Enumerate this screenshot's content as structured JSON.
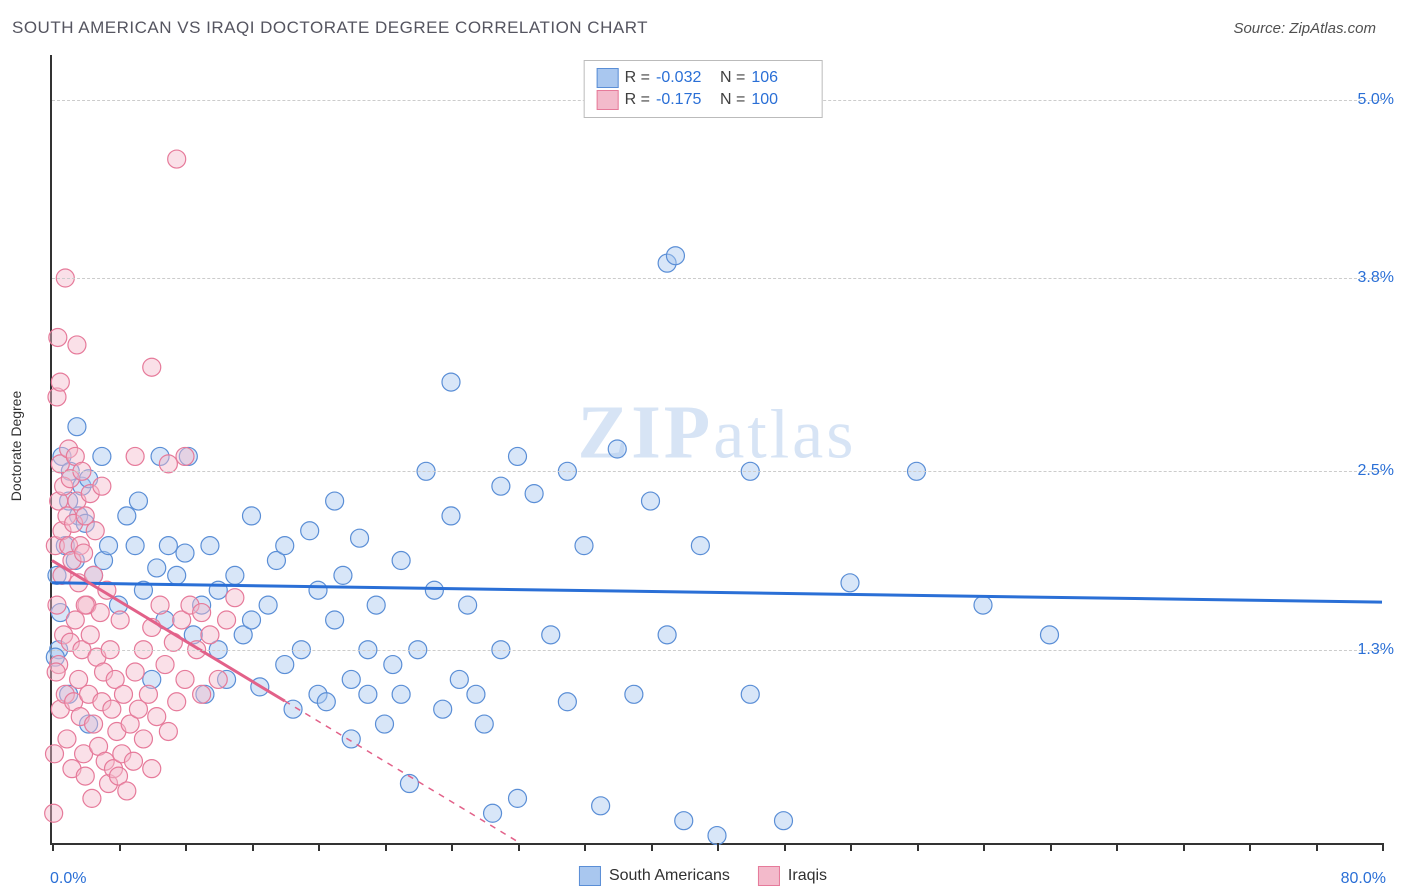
{
  "header": "SOUTH AMERICAN VS IRAQI DOCTORATE DEGREE CORRELATION CHART",
  "source": "Source: ZipAtlas.com",
  "ylabel": "Doctorate Degree",
  "watermark_a": "ZIP",
  "watermark_b": "atlas",
  "chart": {
    "type": "scatter-correlation",
    "xlim": [
      0,
      80
    ],
    "ylim": [
      0,
      5.3
    ],
    "x_ticks_minor_step": 4,
    "y_gridlines": [
      1.3,
      2.5,
      3.8,
      5.0
    ],
    "y_grid_labels": [
      "1.3%",
      "2.5%",
      "3.8%",
      "5.0%"
    ],
    "x_left_label": "0.0%",
    "x_right_label": "80.0%",
    "background_color": "#ffffff",
    "grid_color": "#cccccc",
    "axis_color": "#333333",
    "marker_radius": 9,
    "marker_opacity": 0.45,
    "line_width": 3,
    "series": [
      {
        "name": "South Americans",
        "color_fill": "#a9c7ef",
        "color_stroke": "#5a8ed6",
        "color_line": "#2a6fd6",
        "R": "-0.032",
        "N": "106",
        "trend": {
          "y_at_x0": 1.75,
          "y_at_xmax": 1.62
        },
        "points": [
          [
            0.4,
            1.3
          ],
          [
            0.6,
            2.6
          ],
          [
            0.8,
            2.0
          ],
          [
            1.0,
            2.3
          ],
          [
            1.1,
            2.5
          ],
          [
            1.4,
            1.9
          ],
          [
            1.5,
            2.8
          ],
          [
            1.6,
            2.2
          ],
          [
            1.8,
            2.4
          ],
          [
            2.0,
            2.15
          ],
          [
            2.2,
            0.8
          ],
          [
            2.2,
            2.45
          ],
          [
            2.5,
            1.8
          ],
          [
            3.0,
            2.6
          ],
          [
            3.1,
            1.9
          ],
          [
            3.4,
            2.0
          ],
          [
            4.0,
            1.6
          ],
          [
            4.5,
            2.2
          ],
          [
            5.0,
            2.0
          ],
          [
            5.2,
            2.3
          ],
          [
            5.5,
            1.7
          ],
          [
            6.0,
            1.1
          ],
          [
            6.3,
            1.85
          ],
          [
            6.5,
            2.6
          ],
          [
            6.8,
            1.5
          ],
          [
            7.0,
            2.0
          ],
          [
            7.5,
            1.8
          ],
          [
            8.0,
            1.95
          ],
          [
            8.2,
            2.6
          ],
          [
            8.5,
            1.4
          ],
          [
            9.0,
            1.6
          ],
          [
            9.2,
            1.0
          ],
          [
            9.5,
            2.0
          ],
          [
            10,
            1.3
          ],
          [
            10,
            1.7
          ],
          [
            10.5,
            1.1
          ],
          [
            11,
            1.8
          ],
          [
            11.5,
            1.4
          ],
          [
            12,
            2.2
          ],
          [
            12,
            1.5
          ],
          [
            12.5,
            1.05
          ],
          [
            13,
            1.6
          ],
          [
            13.5,
            1.9
          ],
          [
            14,
            1.2
          ],
          [
            14,
            2.0
          ],
          [
            14.5,
            0.9
          ],
          [
            15,
            1.3
          ],
          [
            15.5,
            2.1
          ],
          [
            16,
            1.0
          ],
          [
            16,
            1.7
          ],
          [
            16.5,
            0.95
          ],
          [
            17,
            1.5
          ],
          [
            17,
            2.3
          ],
          [
            17.5,
            1.8
          ],
          [
            18,
            1.1
          ],
          [
            18,
            0.7
          ],
          [
            18.5,
            2.05
          ],
          [
            19,
            1.3
          ],
          [
            19,
            1.0
          ],
          [
            19.5,
            1.6
          ],
          [
            20,
            0.8
          ],
          [
            20.5,
            1.2
          ],
          [
            21,
            1.9
          ],
          [
            21,
            1.0
          ],
          [
            21.5,
            0.4
          ],
          [
            22,
            1.3
          ],
          [
            22.5,
            2.5
          ],
          [
            23,
            1.7
          ],
          [
            23.5,
            0.9
          ],
          [
            24,
            2.2
          ],
          [
            24,
            3.1
          ],
          [
            24.5,
            1.1
          ],
          [
            25,
            1.6
          ],
          [
            25.5,
            1.0
          ],
          [
            26,
            0.8
          ],
          [
            26.5,
            0.2
          ],
          [
            27,
            2.4
          ],
          [
            27,
            1.3
          ],
          [
            28,
            2.6
          ],
          [
            28,
            0.3
          ],
          [
            29,
            2.35
          ],
          [
            30,
            1.4
          ],
          [
            31,
            2.5
          ],
          [
            31,
            0.95
          ],
          [
            32,
            2.0
          ],
          [
            33,
            0.25
          ],
          [
            34,
            2.65
          ],
          [
            35,
            1.0
          ],
          [
            36,
            2.3
          ],
          [
            37,
            1.4
          ],
          [
            37,
            3.9
          ],
          [
            37.5,
            3.95
          ],
          [
            38,
            0.15
          ],
          [
            39,
            2.0
          ],
          [
            40,
            0.05
          ],
          [
            42,
            2.5
          ],
          [
            42,
            1.0
          ],
          [
            44,
            0.15
          ],
          [
            48,
            1.75
          ],
          [
            52,
            2.5
          ],
          [
            56,
            1.6
          ],
          [
            60,
            1.4
          ],
          [
            0.2,
            1.25
          ],
          [
            0.5,
            1.55
          ],
          [
            1.0,
            1.0
          ],
          [
            0.3,
            1.8
          ]
        ]
      },
      {
        "name": "Iraqis",
        "color_fill": "#f3bacb",
        "color_stroke": "#e67a9a",
        "color_line": "#e26189",
        "R": "-0.175",
        "N": "100",
        "trend": {
          "y_at_x0": 1.9,
          "y_at_xmax": -3.5
        },
        "trend_dash_after_x": 14,
        "points": [
          [
            0.2,
            2.0
          ],
          [
            0.3,
            1.6
          ],
          [
            0.4,
            2.3
          ],
          [
            0.4,
            1.2
          ],
          [
            0.5,
            2.55
          ],
          [
            0.5,
            0.9
          ],
          [
            0.6,
            2.1
          ],
          [
            0.6,
            1.8
          ],
          [
            0.7,
            2.4
          ],
          [
            0.7,
            1.4
          ],
          [
            0.8,
            3.8
          ],
          [
            0.8,
            1.0
          ],
          [
            0.9,
            2.2
          ],
          [
            0.9,
            0.7
          ],
          [
            1.0,
            2.65
          ],
          [
            1.0,
            2.0
          ],
          [
            1.1,
            1.35
          ],
          [
            1.1,
            2.45
          ],
          [
            1.2,
            0.5
          ],
          [
            1.2,
            1.9
          ],
          [
            1.3,
            2.15
          ],
          [
            1.3,
            0.95
          ],
          [
            1.4,
            2.6
          ],
          [
            1.4,
            1.5
          ],
          [
            1.5,
            3.35
          ],
          [
            1.5,
            2.3
          ],
          [
            1.6,
            1.1
          ],
          [
            1.6,
            1.75
          ],
          [
            1.7,
            0.85
          ],
          [
            1.7,
            2.0
          ],
          [
            1.8,
            2.5
          ],
          [
            1.8,
            1.3
          ],
          [
            1.9,
            0.6
          ],
          [
            1.9,
            1.95
          ],
          [
            2.0,
            2.2
          ],
          [
            2.0,
            0.45
          ],
          [
            2.1,
            1.6
          ],
          [
            2.2,
            1.0
          ],
          [
            2.3,
            2.35
          ],
          [
            2.3,
            1.4
          ],
          [
            2.4,
            0.3
          ],
          [
            2.5,
            1.8
          ],
          [
            2.5,
            0.8
          ],
          [
            2.6,
            2.1
          ],
          [
            2.7,
            1.25
          ],
          [
            2.8,
            0.65
          ],
          [
            2.9,
            1.55
          ],
          [
            3.0,
            0.95
          ],
          [
            3.0,
            2.4
          ],
          [
            3.1,
            1.15
          ],
          [
            3.2,
            0.55
          ],
          [
            3.3,
            1.7
          ],
          [
            3.4,
            0.4
          ],
          [
            3.5,
            1.3
          ],
          [
            3.6,
            0.9
          ],
          [
            3.7,
            0.5
          ],
          [
            3.8,
            1.1
          ],
          [
            3.9,
            0.75
          ],
          [
            4.0,
            0.45
          ],
          [
            4.1,
            1.5
          ],
          [
            4.2,
            0.6
          ],
          [
            4.3,
            1.0
          ],
          [
            4.5,
            0.35
          ],
          [
            4.7,
            0.8
          ],
          [
            4.9,
            0.55
          ],
          [
            5.0,
            1.15
          ],
          [
            5.0,
            2.6
          ],
          [
            5.2,
            0.9
          ],
          [
            5.5,
            1.3
          ],
          [
            5.5,
            0.7
          ],
          [
            5.8,
            1.0
          ],
          [
            6.0,
            0.5
          ],
          [
            6.0,
            1.45
          ],
          [
            6.0,
            3.2
          ],
          [
            6.3,
            0.85
          ],
          [
            6.5,
            1.6
          ],
          [
            6.8,
            1.2
          ],
          [
            7.0,
            0.75
          ],
          [
            7.0,
            2.55
          ],
          [
            7.3,
            1.35
          ],
          [
            7.5,
            0.95
          ],
          [
            7.5,
            4.6
          ],
          [
            7.8,
            1.5
          ],
          [
            8.0,
            1.1
          ],
          [
            8.0,
            2.6
          ],
          [
            8.3,
            1.6
          ],
          [
            8.7,
            1.3
          ],
          [
            9.0,
            1.0
          ],
          [
            9.0,
            1.55
          ],
          [
            9.5,
            1.4
          ],
          [
            10,
            1.1
          ],
          [
            10.5,
            1.5
          ],
          [
            11,
            1.65
          ],
          [
            0.1,
            0.2
          ],
          [
            0.3,
            3.0
          ],
          [
            0.35,
            3.4
          ],
          [
            0.5,
            3.1
          ],
          [
            0.15,
            0.6
          ],
          [
            0.25,
            1.15
          ],
          [
            2.0,
            1.6
          ]
        ]
      }
    ]
  },
  "legend_top": {
    "rows": [
      {
        "swatch": 0,
        "r_label": "R =",
        "n_label": "N ="
      },
      {
        "swatch": 1,
        "r_label": "R =",
        "n_label": "N ="
      }
    ]
  },
  "legend_bottom": [
    {
      "swatch": 0
    },
    {
      "swatch": 1
    }
  ]
}
